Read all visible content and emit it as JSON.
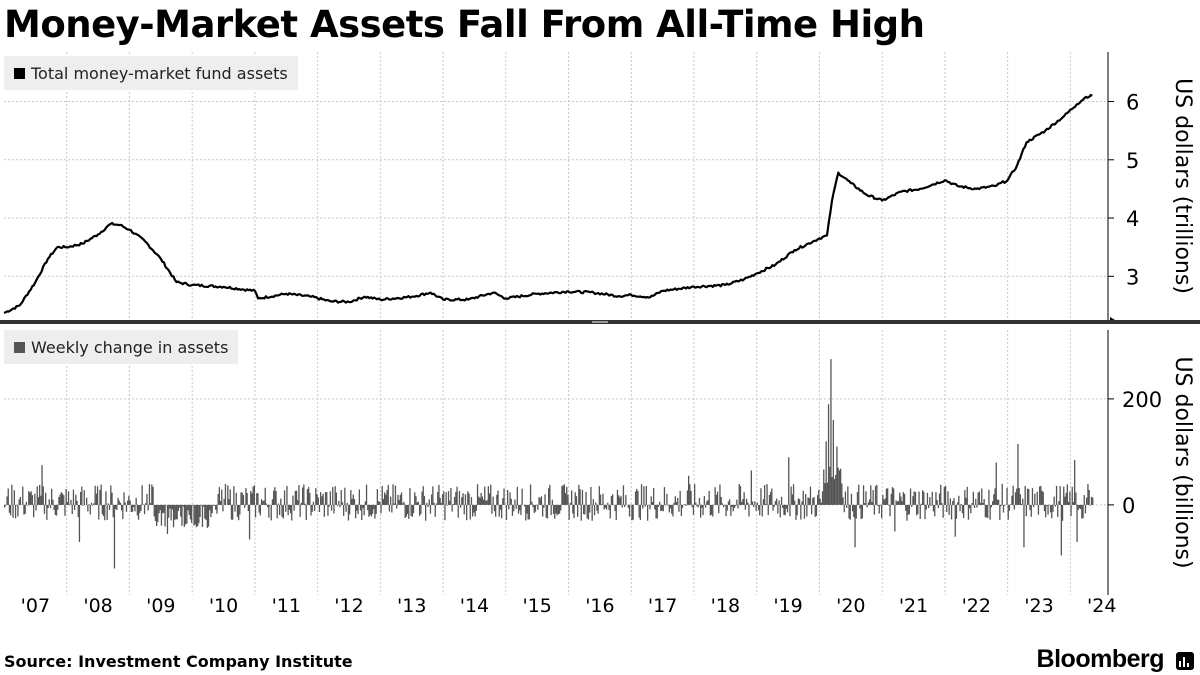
{
  "title": "Money-Market Assets Fall From All-Time High",
  "legend_top": "Total money-market fund assets",
  "legend_bottom": "Weekly change in assets",
  "source": "Source: Investment Company Institute",
  "brand": "Bloomberg",
  "colors": {
    "line": "#000000",
    "bars": "#555555",
    "grid": "#c8c8c8",
    "divider": "#333333"
  },
  "chart_data": [
    {
      "type": "line",
      "title": "",
      "series": [
        {
          "name": "Total money-market fund assets",
          "points": [
            [
              2007.0,
              2.37
            ],
            [
              2007.25,
              2.5
            ],
            [
              2007.5,
              2.9
            ],
            [
              2007.7,
              3.3
            ],
            [
              2007.85,
              3.5
            ],
            [
              2008.0,
              3.5
            ],
            [
              2008.25,
              3.56
            ],
            [
              2008.5,
              3.72
            ],
            [
              2008.7,
              3.9
            ],
            [
              2008.85,
              3.88
            ],
            [
              2009.0,
              3.8
            ],
            [
              2009.25,
              3.6
            ],
            [
              2009.5,
              3.3
            ],
            [
              2009.75,
              2.9
            ],
            [
              2010.0,
              2.85
            ],
            [
              2010.5,
              2.82
            ],
            [
              2011.0,
              2.75
            ],
            [
              2011.05,
              2.62
            ],
            [
              2011.5,
              2.7
            ],
            [
              2011.9,
              2.65
            ],
            [
              2012.2,
              2.57
            ],
            [
              2012.5,
              2.56
            ],
            [
              2012.75,
              2.65
            ],
            [
              2013.0,
              2.6
            ],
            [
              2013.5,
              2.65
            ],
            [
              2013.8,
              2.72
            ],
            [
              2014.0,
              2.6
            ],
            [
              2014.4,
              2.6
            ],
            [
              2014.8,
              2.72
            ],
            [
              2015.0,
              2.62
            ],
            [
              2015.5,
              2.7
            ],
            [
              2016.0,
              2.74
            ],
            [
              2016.4,
              2.72
            ],
            [
              2016.8,
              2.66
            ],
            [
              2017.0,
              2.68
            ],
            [
              2017.3,
              2.64
            ],
            [
              2017.5,
              2.75
            ],
            [
              2018.0,
              2.82
            ],
            [
              2018.5,
              2.85
            ],
            [
              2018.8,
              2.95
            ],
            [
              2019.0,
              3.05
            ],
            [
              2019.3,
              3.2
            ],
            [
              2019.6,
              3.45
            ],
            [
              2019.9,
              3.6
            ],
            [
              2020.0,
              3.65
            ],
            [
              2020.12,
              3.7
            ],
            [
              2020.2,
              4.3
            ],
            [
              2020.3,
              4.78
            ],
            [
              2020.5,
              4.6
            ],
            [
              2020.75,
              4.4
            ],
            [
              2021.0,
              4.3
            ],
            [
              2021.3,
              4.45
            ],
            [
              2021.6,
              4.5
            ],
            [
              2022.0,
              4.65
            ],
            [
              2022.2,
              4.55
            ],
            [
              2022.5,
              4.5
            ],
            [
              2022.8,
              4.55
            ],
            [
              2023.0,
              4.65
            ],
            [
              2023.15,
              4.9
            ],
            [
              2023.3,
              5.3
            ],
            [
              2023.6,
              5.5
            ],
            [
              2023.9,
              5.75
            ],
            [
              2024.1,
              5.95
            ],
            [
              2024.25,
              6.08
            ],
            [
              2024.35,
              6.1
            ]
          ]
        }
      ],
      "xlabels": [
        "'07",
        "'08",
        "'09",
        "'10",
        "'11",
        "'12",
        "'13",
        "'14",
        "'15",
        "'16",
        "'17",
        "'18",
        "'19",
        "'20",
        "'21",
        "'22",
        "'23",
        "'24"
      ],
      "xlim": [
        2007.0,
        2024.6
      ],
      "ylabel": "US dollars (trillions)",
      "yticks": [
        3,
        4,
        5,
        6
      ],
      "ylim": [
        2.25,
        6.85
      ]
    },
    {
      "type": "bar",
      "title": "",
      "series": [
        {
          "name": "Weekly change in assets"
        }
      ],
      "range_x": [
        2007.0,
        2024.35
      ],
      "typical_range": [
        -30,
        40
      ],
      "spikes": [
        [
          2007.6,
          75
        ],
        [
          2008.2,
          -70
        ],
        [
          2008.75,
          -120
        ],
        [
          2009.6,
          -55
        ],
        [
          2010.9,
          -65
        ],
        [
          2017.9,
          55
        ],
        [
          2018.9,
          65
        ],
        [
          2019.5,
          90
        ],
        [
          2020.1,
          120
        ],
        [
          2020.14,
          190
        ],
        [
          2020.18,
          275
        ],
        [
          2020.22,
          160
        ],
        [
          2020.26,
          110
        ],
        [
          2020.3,
          65
        ],
        [
          2020.55,
          -80
        ],
        [
          2021.2,
          -50
        ],
        [
          2022.15,
          -60
        ],
        [
          2022.8,
          80
        ],
        [
          2023.15,
          115
        ],
        [
          2023.25,
          -80
        ],
        [
          2023.85,
          -95
        ],
        [
          2024.05,
          85
        ],
        [
          2024.1,
          -70
        ],
        [
          2024.2,
          -25
        ]
      ],
      "ylabel": "US dollars (billions)",
      "yticks": [
        0,
        200
      ],
      "ylim": [
        -170,
        330
      ]
    }
  ]
}
